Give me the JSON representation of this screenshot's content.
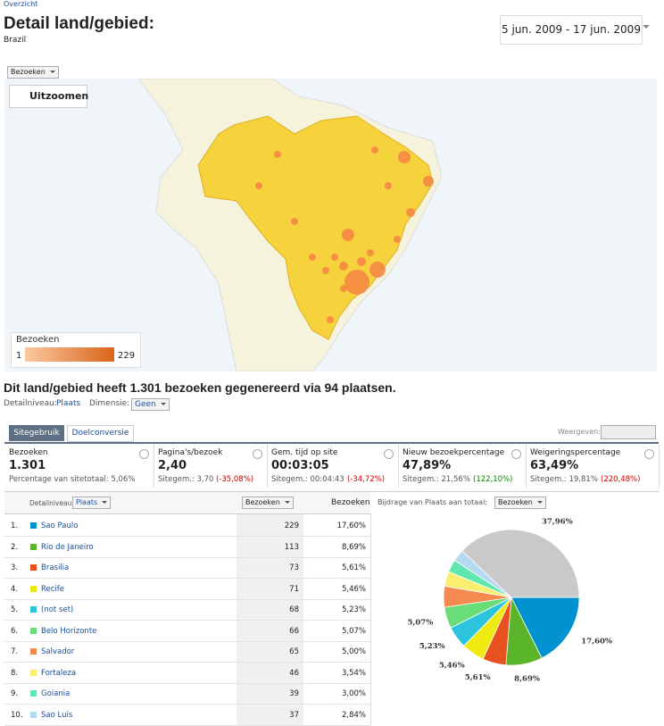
{
  "breadcrumb": "Overzicht",
  "header": {
    "title": "Detail land/gebied:",
    "subtitle": "Brazil",
    "date_range": "5 jun. 2009 - 17 jun. 2009"
  },
  "map": {
    "dropdown": "Bezoeken",
    "zoom": "Uitzoomen",
    "legend_title": "Bezoeken",
    "legend_min": "1",
    "legend_max": "229"
  },
  "summary": "Dit land/gebied heeft 1.301 bezoeken gegenereerd via 94 plaatsen.",
  "detail_level": {
    "label": "Detailniveau:",
    "value": "Plaats",
    "dimension_label": "Dimensie:",
    "dimension_value": "Geen"
  },
  "tabs": [
    "Sitegebruik",
    "Doelconversie"
  ],
  "view_label": "Weergeven:",
  "metrics": [
    {
      "name": "Bezoeken",
      "value": "1.301",
      "sub": "Percentage van sitetotaal: 5,06%"
    },
    {
      "name": "Pagina's/bezoek",
      "value": "2,40",
      "sub": "Sitegem.: 3,70",
      "change": "(-35,08%)",
      "change_color": "#cc0000"
    },
    {
      "name": "Gem. tijd op site",
      "value": "00:03:05",
      "sub": "Sitegem.: 00:04:43",
      "change": "(-34,72%)",
      "change_color": "#cc0000"
    },
    {
      "name": "Nieuw bezoekpercentage",
      "value": "47,89%",
      "sub": "Sitegem.: 21,56%",
      "change": "(122,10%)",
      "change_color": "#008800"
    },
    {
      "name": "Weigeringspercentage",
      "value": "63,49%",
      "sub": "Sitegem.: 19,81%",
      "change": "(220,48%)",
      "change_color": "#cc0000"
    }
  ],
  "table": {
    "header": {
      "detail_label": "Detailniveau:",
      "detail_value": "Plaats",
      "sort_column": "Bezoeken",
      "pct_column": "Bezoeken",
      "contribution_label": "Bijdrage van Plaats aan totaal:",
      "contribution_value": "Bezoeken"
    },
    "rows": [
      {
        "index": "1.",
        "name": "Sao Paulo",
        "visits": 229,
        "pct": "17,60%",
        "color": "#0092d0"
      },
      {
        "index": "2.",
        "name": "Rio de Janeiro",
        "visits": 113,
        "pct": "8,69%",
        "color": "#5ab52b"
      },
      {
        "index": "3.",
        "name": "Brasilia",
        "visits": 73,
        "pct": "5,61%",
        "color": "#e8521f"
      },
      {
        "index": "4.",
        "name": "Recife",
        "visits": 71,
        "pct": "5,46%",
        "color": "#eeea12"
      },
      {
        "index": "5.",
        "name": "(not set)",
        "visits": 68,
        "pct": "5,23%",
        "color": "#2cc4dc"
      },
      {
        "index": "6.",
        "name": "Belo Horizonte",
        "visits": 66,
        "pct": "5,07%",
        "color": "#6bdc7a"
      },
      {
        "index": "7.",
        "name": "Salvador",
        "visits": 65,
        "pct": "5,00%",
        "color": "#f58a50"
      },
      {
        "index": "8.",
        "name": "Fortaleza",
        "visits": 46,
        "pct": "3,54%",
        "color": "#f9ee6e"
      },
      {
        "index": "9.",
        "name": "Goiania",
        "visits": 39,
        "pct": "3,00%",
        "color": "#62e6b0"
      },
      {
        "index": "10.",
        "name": "Sao Luis",
        "visits": 37,
        "pct": "2,84%",
        "color": "#b6d9f2"
      }
    ]
  },
  "chart_data": {
    "type": "pie",
    "values": [
      17.6,
      8.69,
      5.61,
      5.46,
      5.23,
      5.07,
      5.0,
      3.54,
      3.0,
      2.84,
      37.96
    ],
    "value_labels": [
      "17,60%",
      "8,69%",
      "5,61%",
      "5,46%",
      "5,23%",
      "5,07%",
      null,
      null,
      null,
      null,
      "37,96%"
    ],
    "colors": [
      "#0092d0",
      "#5ab52b",
      "#e8521f",
      "#eeea12",
      "#2cc4dc",
      "#6bdc7a",
      "#f58a50",
      "#f9ee6e",
      "#62e6b0",
      "#b6d9f2",
      "#c8c9c8"
    ]
  }
}
